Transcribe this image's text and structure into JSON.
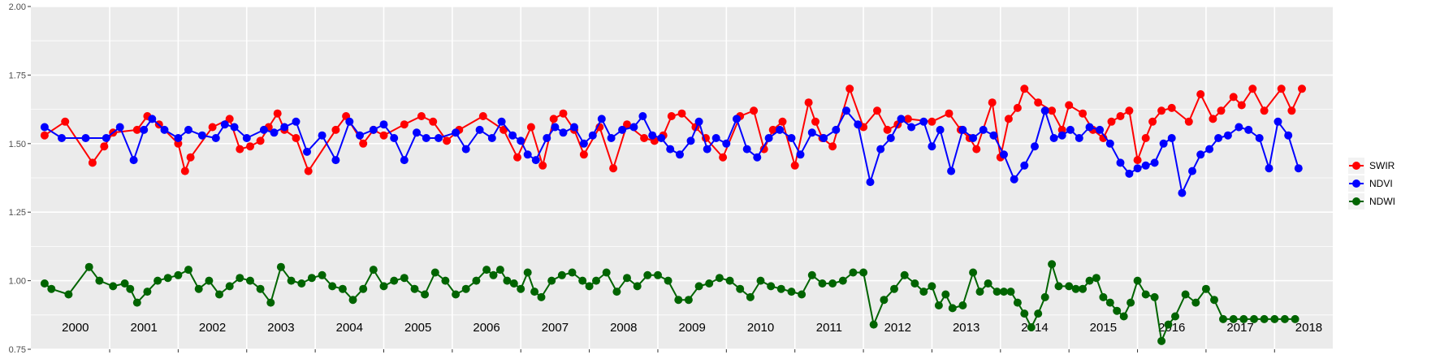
{
  "chart_data": {
    "type": "line",
    "title": "",
    "xlabel": "",
    "ylabel": "",
    "ylim": [
      0.75,
      2.0
    ],
    "xlim": [
      1999.85,
      2018.85
    ],
    "y_ticks": [
      "0.75",
      "1.00",
      "1.25",
      "1.50",
      "1.75",
      "2.00"
    ],
    "y_tick_values": [
      0.75,
      1.0,
      1.25,
      1.5,
      1.75,
      2.0
    ],
    "year_labels": [
      "2000",
      "2001",
      "2002",
      "2003",
      "2004",
      "2005",
      "2006",
      "2007",
      "2008",
      "2009",
      "2010",
      "2011",
      "2012",
      "2013",
      "2014",
      "2015",
      "2016",
      "2017",
      "2018"
    ],
    "grid": true,
    "legend_position": "right",
    "series": [
      {
        "name": "SWIR",
        "color": "#ff0000",
        "x": [
          2000.05,
          2000.35,
          2000.75,
          2000.92,
          2001.05,
          2001.4,
          2001.55,
          2001.72,
          2002.0,
          2002.1,
          2002.18,
          2002.5,
          2002.75,
          2002.9,
          2003.05,
          2003.2,
          2003.32,
          2003.45,
          2003.55,
          2003.72,
          2003.9,
          2004.3,
          2004.45,
          2004.7,
          2004.85,
          2005.0,
          2005.3,
          2005.55,
          2005.72,
          2005.92,
          2006.1,
          2006.45,
          2006.75,
          2006.95,
          2007.15,
          2007.32,
          2007.48,
          2007.62,
          2007.78,
          2007.92,
          2008.15,
          2008.35,
          2008.55,
          2008.8,
          2008.95,
          2009.08,
          2009.2,
          2009.35,
          2009.55,
          2009.7,
          2009.95,
          2010.2,
          2010.4,
          2010.55,
          2010.68,
          2010.82,
          2011.0,
          2011.2,
          2011.3,
          2011.4,
          2011.55,
          2011.8,
          2012.0,
          2012.2,
          2012.35,
          2012.5,
          2012.65,
          2013.0,
          2013.25,
          2013.42,
          2013.55,
          2013.65,
          2013.88,
          2014.0,
          2014.12,
          2014.25,
          2014.35,
          2014.55,
          2014.75,
          2014.9,
          2015.0,
          2015.2,
          2015.35,
          2015.5,
          2015.62,
          2015.75,
          2015.88,
          2016.0,
          2016.12,
          2016.22,
          2016.35,
          2016.5,
          2016.75,
          2016.92,
          2017.1,
          2017.22,
          2017.4,
          2017.52,
          2017.68,
          2017.85,
          2018.1,
          2018.25,
          2018.4
        ],
        "values": [
          1.53,
          1.58,
          1.43,
          1.49,
          1.54,
          1.55,
          1.6,
          1.57,
          1.5,
          1.4,
          1.45,
          1.56,
          1.59,
          1.48,
          1.49,
          1.51,
          1.56,
          1.61,
          1.55,
          1.52,
          1.4,
          1.55,
          1.6,
          1.5,
          1.55,
          1.53,
          1.57,
          1.6,
          1.58,
          1.51,
          1.55,
          1.6,
          1.55,
          1.45,
          1.56,
          1.42,
          1.59,
          1.61,
          1.55,
          1.46,
          1.56,
          1.41,
          1.57,
          1.52,
          1.51,
          1.53,
          1.6,
          1.61,
          1.56,
          1.52,
          1.45,
          1.6,
          1.62,
          1.48,
          1.55,
          1.58,
          1.42,
          1.65,
          1.58,
          1.52,
          1.49,
          1.7,
          1.56,
          1.62,
          1.55,
          1.57,
          1.59,
          1.58,
          1.61,
          1.55,
          1.52,
          1.48,
          1.65,
          1.45,
          1.59,
          1.63,
          1.7,
          1.65,
          1.62,
          1.55,
          1.64,
          1.61,
          1.55,
          1.52,
          1.58,
          1.6,
          1.62,
          1.44,
          1.52,
          1.58,
          1.62,
          1.63,
          1.58,
          1.68,
          1.59,
          1.62,
          1.67,
          1.64,
          1.7,
          1.62,
          1.7,
          1.62,
          1.7
        ]
      },
      {
        "name": "NDVI",
        "color": "#0000ff",
        "x": [
          2000.05,
          2000.3,
          2000.65,
          2000.95,
          2001.15,
          2001.35,
          2001.5,
          2001.62,
          2001.8,
          2002.0,
          2002.15,
          2002.35,
          2002.55,
          2002.68,
          2002.82,
          2003.0,
          2003.25,
          2003.4,
          2003.55,
          2003.72,
          2003.88,
          2004.1,
          2004.3,
          2004.5,
          2004.65,
          2004.85,
          2005.0,
          2005.15,
          2005.3,
          2005.48,
          2005.62,
          2005.8,
          2006.05,
          2006.2,
          2006.4,
          2006.58,
          2006.72,
          2006.88,
          2007.0,
          2007.1,
          2007.22,
          2007.38,
          2007.5,
          2007.62,
          2007.78,
          2007.92,
          2008.05,
          2008.18,
          2008.32,
          2008.48,
          2008.65,
          2008.78,
          2008.92,
          2009.05,
          2009.18,
          2009.32,
          2009.48,
          2009.6,
          2009.72,
          2009.85,
          2010.0,
          2010.15,
          2010.3,
          2010.45,
          2010.62,
          2010.78,
          2010.95,
          2011.08,
          2011.25,
          2011.42,
          2011.6,
          2011.75,
          2011.92,
          2012.1,
          2012.25,
          2012.4,
          2012.55,
          2012.7,
          2012.88,
          2013.0,
          2013.12,
          2013.28,
          2013.45,
          2013.6,
          2013.75,
          2013.9,
          2014.05,
          2014.2,
          2014.35,
          2014.5,
          2014.65,
          2014.78,
          2014.9,
          2015.02,
          2015.15,
          2015.3,
          2015.45,
          2015.6,
          2015.75,
          2015.88,
          2016.0,
          2016.12,
          2016.25,
          2016.38,
          2016.5,
          2016.65,
          2016.8,
          2016.92,
          2017.05,
          2017.18,
          2017.32,
          2017.48,
          2017.62,
          2017.78,
          2017.92,
          2018.05,
          2018.2,
          2018.35
        ],
        "values": [
          1.56,
          1.52,
          1.52,
          1.52,
          1.56,
          1.44,
          1.55,
          1.59,
          1.55,
          1.52,
          1.55,
          1.53,
          1.52,
          1.57,
          1.56,
          1.52,
          1.55,
          1.54,
          1.56,
          1.58,
          1.47,
          1.53,
          1.44,
          1.58,
          1.53,
          1.55,
          1.57,
          1.52,
          1.44,
          1.54,
          1.52,
          1.52,
          1.54,
          1.48,
          1.55,
          1.52,
          1.58,
          1.53,
          1.51,
          1.46,
          1.44,
          1.52,
          1.56,
          1.54,
          1.56,
          1.5,
          1.53,
          1.59,
          1.52,
          1.55,
          1.56,
          1.6,
          1.53,
          1.52,
          1.48,
          1.46,
          1.51,
          1.58,
          1.48,
          1.52,
          1.5,
          1.59,
          1.48,
          1.45,
          1.52,
          1.55,
          1.52,
          1.46,
          1.54,
          1.52,
          1.55,
          1.62,
          1.57,
          1.36,
          1.48,
          1.52,
          1.59,
          1.56,
          1.58,
          1.49,
          1.55,
          1.4,
          1.55,
          1.52,
          1.55,
          1.53,
          1.46,
          1.37,
          1.42,
          1.49,
          1.62,
          1.52,
          1.53,
          1.55,
          1.52,
          1.56,
          1.55,
          1.5,
          1.43,
          1.39,
          1.41,
          1.42,
          1.43,
          1.5,
          1.52,
          1.32,
          1.4,
          1.46,
          1.48,
          1.52,
          1.53,
          1.56,
          1.55,
          1.52,
          1.41,
          1.58,
          1.53,
          1.41
        ]
      },
      {
        "name": "NDWI",
        "color": "#006400",
        "x": [
          2000.05,
          2000.15,
          2000.4,
          2000.7,
          2000.85,
          2001.05,
          2001.22,
          2001.3,
          2001.4,
          2001.55,
          2001.7,
          2001.85,
          2002.0,
          2002.15,
          2002.3,
          2002.45,
          2002.6,
          2002.75,
          2002.9,
          2003.05,
          2003.2,
          2003.35,
          2003.5,
          2003.65,
          2003.8,
          2003.95,
          2004.1,
          2004.25,
          2004.4,
          2004.55,
          2004.7,
          2004.85,
          2005.0,
          2005.15,
          2005.3,
          2005.45,
          2005.6,
          2005.75,
          2005.9,
          2006.05,
          2006.2,
          2006.35,
          2006.5,
          2006.6,
          2006.7,
          2006.8,
          2006.9,
          2007.0,
          2007.1,
          2007.2,
          2007.3,
          2007.45,
          2007.6,
          2007.75,
          2007.9,
          2008.0,
          2008.1,
          2008.25,
          2008.4,
          2008.55,
          2008.7,
          2008.85,
          2009.0,
          2009.15,
          2009.3,
          2009.45,
          2009.6,
          2009.75,
          2009.9,
          2010.05,
          2010.2,
          2010.35,
          2010.5,
          2010.65,
          2010.8,
          2010.95,
          2011.1,
          2011.25,
          2011.4,
          2011.55,
          2011.7,
          2011.85,
          2012.0,
          2012.15,
          2012.3,
          2012.45,
          2012.6,
          2012.75,
          2012.88,
          2013.0,
          2013.1,
          2013.2,
          2013.3,
          2013.45,
          2013.6,
          2013.7,
          2013.82,
          2013.95,
          2014.05,
          2014.15,
          2014.25,
          2014.35,
          2014.45,
          2014.55,
          2014.65,
          2014.75,
          2014.85,
          2015.0,
          2015.1,
          2015.2,
          2015.3,
          2015.4,
          2015.5,
          2015.6,
          2015.7,
          2015.8,
          2015.9,
          2016.0,
          2016.12,
          2016.25,
          2016.35,
          2016.45,
          2016.55,
          2016.7,
          2016.85,
          2017.0,
          2017.12,
          2017.25,
          2017.4,
          2017.55,
          2017.7,
          2017.85,
          2018.0,
          2018.15,
          2018.3
        ],
        "values": [
          0.99,
          0.97,
          0.95,
          1.05,
          1.0,
          0.98,
          0.99,
          0.97,
          0.92,
          0.96,
          1.0,
          1.01,
          1.02,
          1.04,
          0.97,
          1.0,
          0.95,
          0.98,
          1.01,
          1.0,
          0.97,
          0.92,
          1.05,
          1.0,
          0.99,
          1.01,
          1.02,
          0.98,
          0.97,
          0.93,
          0.97,
          1.04,
          0.98,
          1.0,
          1.01,
          0.97,
          0.95,
          1.03,
          1.0,
          0.95,
          0.97,
          1.0,
          1.04,
          1.02,
          1.04,
          1.0,
          0.99,
          0.97,
          1.03,
          0.96,
          0.94,
          1.0,
          1.02,
          1.03,
          1.0,
          0.98,
          1.0,
          1.03,
          0.96,
          1.01,
          0.98,
          1.02,
          1.02,
          1.0,
          0.93,
          0.93,
          0.98,
          0.99,
          1.01,
          1.0,
          0.97,
          0.94,
          1.0,
          0.98,
          0.97,
          0.96,
          0.95,
          1.02,
          0.99,
          0.99,
          1.0,
          1.03,
          1.03,
          0.84,
          0.93,
          0.97,
          1.02,
          0.99,
          0.96,
          0.98,
          0.91,
          0.95,
          0.9,
          0.91,
          1.03,
          0.96,
          0.99,
          0.96,
          0.96,
          0.96,
          0.92,
          0.88,
          0.83,
          0.88,
          0.94,
          1.06,
          0.98,
          0.98,
          0.97,
          0.97,
          1.0,
          1.01,
          0.94,
          0.92,
          0.89,
          0.87,
          0.92,
          1.0,
          0.95,
          0.94,
          0.78,
          0.84,
          0.87,
          0.95,
          0.92,
          0.97,
          0.93,
          0.86,
          0.86,
          0.86,
          0.86,
          0.86,
          0.86,
          0.86,
          0.86
        ]
      }
    ]
  }
}
